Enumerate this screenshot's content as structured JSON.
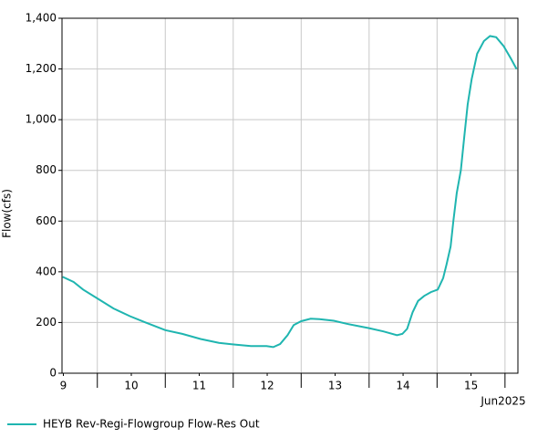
{
  "chart_data": {
    "type": "line",
    "y_label": "Flow(cfs)",
    "x_date_label": "Jun2025",
    "xlim": [
      9.48,
      16.19
    ],
    "xticks": [
      {
        "value": 9.5,
        "label": "9"
      },
      {
        "value": 10.5,
        "label": "10"
      },
      {
        "value": 11.5,
        "label": "11"
      },
      {
        "value": 12.5,
        "label": "12"
      },
      {
        "value": 13.5,
        "label": "13"
      },
      {
        "value": 14.5,
        "label": "14"
      },
      {
        "value": 15.5,
        "label": "15"
      }
    ],
    "x_boundary_ticks": [
      10,
      11,
      12,
      13,
      14,
      15,
      16
    ],
    "ylim": [
      0,
      1400
    ],
    "yticks": [
      0,
      200,
      400,
      600,
      800,
      {
        "value": 1000,
        "label": "1,000"
      },
      {
        "value": 1200,
        "label": "1,200"
      },
      {
        "value": 1400,
        "label": "1,400"
      }
    ],
    "grid": true,
    "legend": "bottom-left",
    "series": [
      {
        "name": "HEYB Rev-Regi-Flowgroup Flow-Res Out",
        "color": "#1fb5b0",
        "x": [
          9.49,
          9.65,
          9.79,
          10.0,
          10.24,
          10.48,
          10.71,
          11.0,
          11.25,
          11.52,
          11.79,
          12.06,
          12.26,
          12.49,
          12.59,
          12.69,
          12.8,
          12.89,
          13.0,
          13.14,
          13.27,
          13.48,
          13.67,
          13.99,
          14.21,
          14.41,
          14.49,
          14.56,
          14.64,
          14.72,
          14.81,
          14.91,
          15.01,
          15.09,
          15.14,
          15.2,
          15.24,
          15.29,
          15.35,
          15.4,
          15.45,
          15.51,
          15.59,
          15.69,
          15.78,
          15.87,
          15.98,
          16.09,
          16.17
        ],
        "values": [
          380,
          360,
          330,
          295,
          255,
          225,
          200,
          170,
          155,
          135,
          120,
          112,
          107,
          107,
          103,
          115,
          150,
          190,
          205,
          215,
          213,
          207,
          195,
          178,
          165,
          150,
          155,
          175,
          240,
          285,
          305,
          320,
          330,
          375,
          430,
          500,
          600,
          710,
          800,
          930,
          1060,
          1160,
          1260,
          1310,
          1330,
          1325,
          1290,
          1240,
          1200
        ]
      }
    ]
  }
}
